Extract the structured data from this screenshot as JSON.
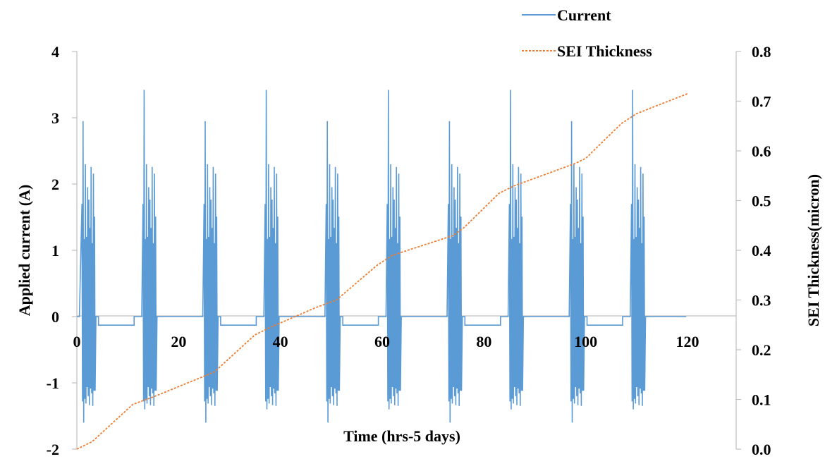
{
  "chart_data": {
    "type": "line",
    "xlabel": "Time (hrs-5 days)",
    "ylabel": "Applied current (A)",
    "y2label": "SEI Thickness(micron)",
    "xlim": [
      0,
      120
    ],
    "ylim": [
      -2,
      4
    ],
    "y2lim": [
      0,
      0.8
    ],
    "x_ticks": [
      "0",
      "20",
      "40",
      "60",
      "80",
      "100",
      "120"
    ],
    "y_ticks": [
      "-2",
      "-1",
      "0",
      "1",
      "2",
      "3",
      "4"
    ],
    "y2_ticks": [
      "0.0",
      "0.1",
      "0.2",
      "0.3",
      "0.4",
      "0.5",
      "0.6",
      "0.7",
      "0.8"
    ],
    "grid": false,
    "legend_position": "top-right",
    "colors": {
      "current": "#5B9BD5",
      "sei": "#ED7D31",
      "axis": "#BFBFBF"
    },
    "series": [
      {
        "name": "Current",
        "axis": "left",
        "style": "solid",
        "description_points": {
          "baseline_A": 0,
          "rest_current_A": -0.13,
          "burst_centers_h": [
            2.3,
            14.3,
            26.3,
            38.3,
            50.3,
            62.3,
            74.3,
            86.3,
            98.3,
            110.3
          ],
          "burst_peak_max_A": [
            2.95,
            3.42,
            2.95,
            3.42,
            2.95,
            3.42,
            2.95,
            3.42,
            2.95,
            3.42
          ],
          "burst_peak_min_A": [
            -1.6,
            -1.4,
            -1.6,
            -1.4,
            -1.6,
            -1.4,
            -1.6,
            -1.4,
            -1.6,
            -1.4
          ],
          "rest_intervals_h": [
            [
              3.8,
              11.0
            ],
            [
              27.8,
              35.0
            ],
            [
              51.8,
              59.0
            ],
            [
              75.8,
              83.0
            ],
            [
              99.8,
              107.0
            ]
          ]
        }
      },
      {
        "name": "SEI Thickness",
        "axis": "right",
        "style": "dashed",
        "x": [
          0,
          3,
          11,
          15,
          27,
          35,
          38,
          47,
          51,
          59,
          62,
          74,
          76,
          83,
          86,
          98,
          100,
          107,
          110,
          120
        ],
        "y": [
          0.0,
          0.015,
          0.09,
          0.105,
          0.155,
          0.23,
          0.245,
          0.285,
          0.3,
          0.37,
          0.39,
          0.43,
          0.445,
          0.515,
          0.53,
          0.575,
          0.585,
          0.655,
          0.675,
          0.715
        ]
      }
    ]
  }
}
